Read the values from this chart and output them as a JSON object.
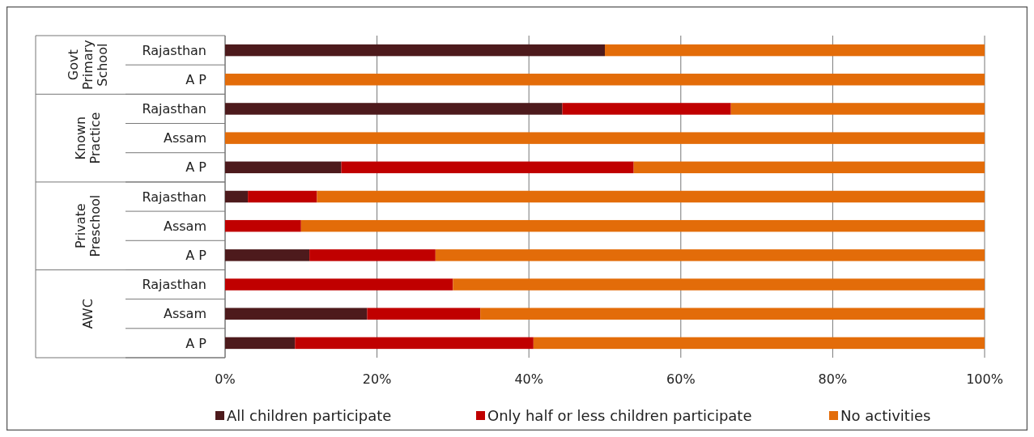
{
  "chart_data": {
    "type": "bar",
    "orientation": "horizontal",
    "stacked": true,
    "categories": [
      "Rajasthan",
      "A P",
      "Rajasthan",
      "Assam",
      "A P",
      "Rajasthan",
      "Assam",
      "A P",
      "Rajasthan",
      "Assam",
      "A P"
    ],
    "annotations": [
      "Govt Primary School",
      "Known Practice",
      "Private Preschool",
      "AWC"
    ],
    "series": [
      {
        "name": "All children participate",
        "color": "#4d1a1c",
        "values": [
          50,
          0,
          44.4,
          0,
          15.3,
          3.0,
          0,
          11.1,
          0,
          18.7,
          9.2
        ]
      },
      {
        "name": "Only half or less children participate",
        "color": "#c00000",
        "values": [
          0,
          0,
          22.2,
          0,
          38.5,
          9.1,
          10,
          16.6,
          30,
          14.9,
          31.4
        ]
      },
      {
        "name": "No activities",
        "color": "#e36c09",
        "values": [
          50,
          100,
          33.4,
          100,
          46.2,
          87.9,
          90,
          72.3,
          70,
          66.4,
          59.4
        ]
      }
    ],
    "xlim": [
      0,
      100
    ],
    "xticks": [
      {
        "value": 0,
        "label": "0%"
      },
      {
        "value": 20,
        "label": "20%"
      },
      {
        "value": 40,
        "label": "40%"
      },
      {
        "value": 60,
        "label": "60%"
      },
      {
        "value": 80,
        "label": "80%"
      },
      {
        "value": 100,
        "label": "100%"
      }
    ],
    "grid": "x",
    "legend": "bottom"
  }
}
